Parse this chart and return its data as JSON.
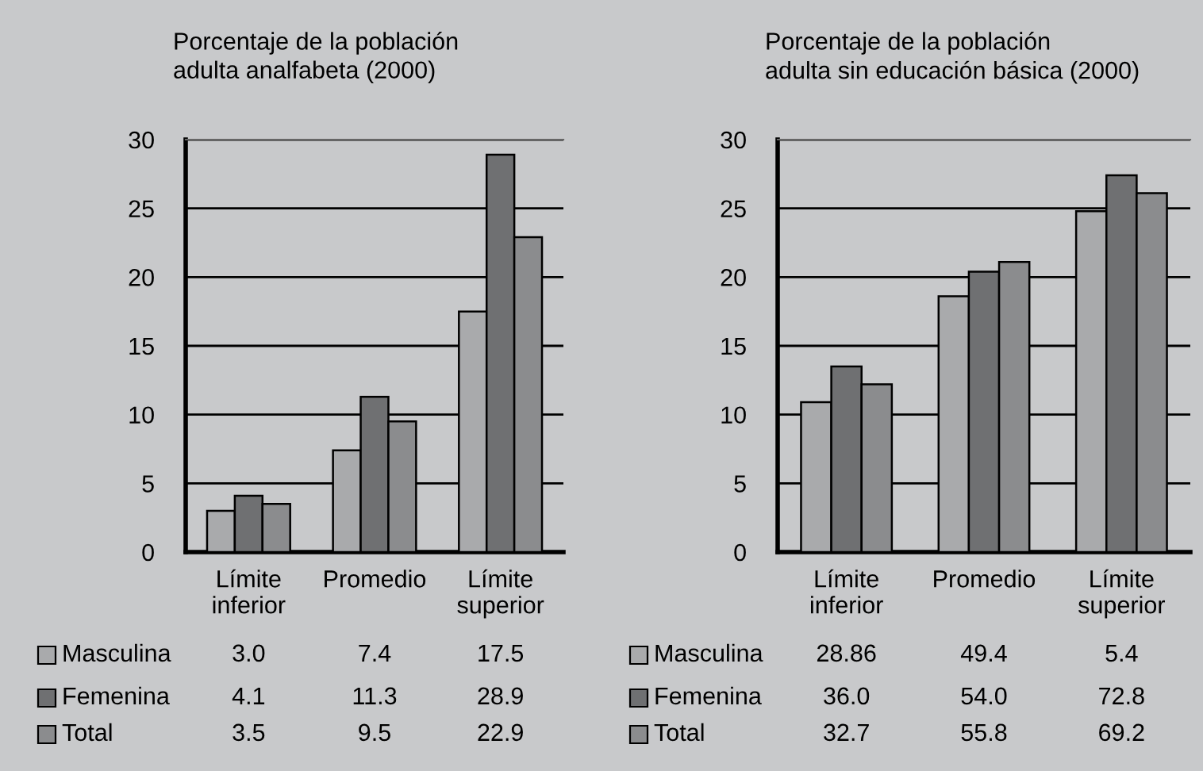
{
  "chart_data": [
    {
      "type": "bar",
      "title": "Porcentaje de la población\nadulta analfabeta (2000)",
      "categories": [
        "Límite\ninferior",
        "Promedio",
        "Límite\nsuperior"
      ],
      "ylim": [
        0,
        30
      ],
      "yticks": [
        0,
        5,
        10,
        15,
        20,
        25,
        30
      ],
      "grid": "y",
      "legend": "bottom",
      "series": [
        {
          "name": "Masculina",
          "color": "#a9aaac",
          "values": [
            3.0,
            7.4,
            17.5
          ],
          "value_labels": [
            "3.0",
            "7.4",
            "17.5"
          ]
        },
        {
          "name": "Femenina",
          "color": "#6f7072",
          "values": [
            4.1,
            11.3,
            28.9
          ],
          "value_labels": [
            "4.1",
            "11.3",
            "28.9"
          ]
        },
        {
          "name": "Total",
          "color": "#8b8c8e",
          "values": [
            3.5,
            9.5,
            22.9
          ],
          "value_labels": [
            "3.5",
            "9.5",
            "22.9"
          ]
        }
      ]
    },
    {
      "type": "bar",
      "title": "Porcentaje de la población\nadulta sin educación básica (2000)",
      "categories": [
        "Límite\ninferior",
        "Promedio",
        "Límite\nsuperior"
      ],
      "ylim": [
        0,
        30
      ],
      "yticks": [
        0,
        5,
        10,
        15,
        20,
        25,
        30
      ],
      "grid": "y",
      "legend": "bottom",
      "series": [
        {
          "name": "Masculina",
          "color": "#a9aaac",
          "values": [
            10.9,
            18.6,
            24.8
          ]
        },
        {
          "name": "Femenina",
          "color": "#6f7072",
          "values": [
            13.5,
            20.4,
            27.4
          ]
        },
        {
          "name": "Total",
          "color": "#8b8c8e",
          "values": [
            12.2,
            21.1,
            26.1
          ]
        }
      ],
      "annotations": [
        "28.86",
        "49.4",
        "5.4",
        "36.0",
        "54.0",
        "72.8",
        "32.7",
        "55.8",
        "69.2"
      ]
    }
  ]
}
